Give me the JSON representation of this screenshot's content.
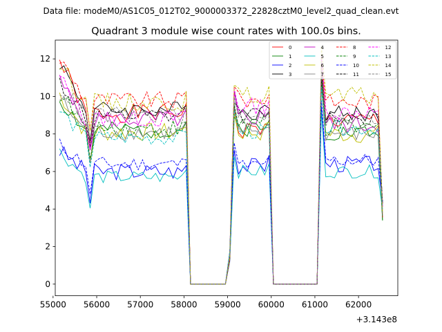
{
  "figure": {
    "suptitle": "Data file: modeM0/AS1C05_012T02_9000003372_22828cztM0_level2_quad_clean.evt"
  },
  "chart_data": {
    "type": "line",
    "title": "Quadrant 3 module wise count rates with 100.0s bins.",
    "xlabel": "",
    "ylabel": "",
    "x_offset_label": "+3.143e8",
    "xlim": [
      55050,
      62900
    ],
    "ylim": [
      -0.62,
      13.0
    ],
    "x_ticks": [
      55000,
      56000,
      57000,
      58000,
      59000,
      60000,
      61000,
      62000
    ],
    "x_tick_labels": [
      "55000",
      "56000",
      "57000",
      "58000",
      "59000",
      "60000",
      "61000",
      "62000"
    ],
    "y_ticks": [
      0,
      2,
      4,
      6,
      8,
      10,
      12
    ],
    "y_tick_labels": [
      "0",
      "2",
      "4",
      "6",
      "8",
      "10",
      "12"
    ],
    "legend": {
      "placement": "top-right",
      "columns": 4
    },
    "segments": [
      {
        "start": 55150,
        "end": 58050
      },
      {
        "start": 59050,
        "end": 59950
      },
      {
        "start": 61150,
        "end": 62550
      }
    ],
    "gaps": [
      {
        "start": 58150,
        "end": 58950
      },
      {
        "start": 60050,
        "end": 61050
      }
    ],
    "series": [
      {
        "name": "0",
        "color": "#ff0000",
        "dash": false,
        "base": [
          9.1,
          8.2,
          8.7
        ],
        "start": 12.4,
        "amp": 0.5,
        "seed": 1
      },
      {
        "name": "1",
        "color": "#008000",
        "dash": false,
        "base": [
          8.2,
          8.3,
          8.1
        ],
        "start": 10.1,
        "amp": 0.45,
        "seed": 2
      },
      {
        "name": "2",
        "color": "#0000ff",
        "dash": false,
        "base": [
          6.0,
          6.3,
          6.4
        ],
        "start": 7.3,
        "amp": 0.45,
        "seed": 3
      },
      {
        "name": "3",
        "color": "#000000",
        "dash": false,
        "base": [
          9.3,
          9.2,
          9.1
        ],
        "start": 12.3,
        "amp": 0.45,
        "seed": 4
      },
      {
        "name": "4",
        "color": "#bf00bf",
        "dash": false,
        "base": [
          8.8,
          8.9,
          8.5
        ],
        "start": 11.1,
        "amp": 0.5,
        "seed": 5
      },
      {
        "name": "5",
        "color": "#00bfbf",
        "dash": false,
        "base": [
          5.7,
          6.0,
          6.0
        ],
        "start": 7.3,
        "amp": 0.35,
        "seed": 6
      },
      {
        "name": "6",
        "color": "#bfbf00",
        "dash": false,
        "base": [
          8.1,
          8.1,
          8.0
        ],
        "start": 10.5,
        "amp": 0.5,
        "seed": 7
      },
      {
        "name": "7",
        "color": "#808080",
        "dash": false,
        "base": [
          8.1,
          8.2,
          8.0
        ],
        "start": 10.2,
        "amp": 0.45,
        "seed": 8
      },
      {
        "name": "8",
        "color": "#ff0000",
        "dash": true,
        "base": [
          9.8,
          9.8,
          9.7
        ],
        "start": 12.4,
        "amp": 0.45,
        "seed": 9
      },
      {
        "name": "9",
        "color": "#008000",
        "dash": true,
        "base": [
          8.3,
          8.6,
          8.3
        ],
        "start": 10.5,
        "amp": 0.5,
        "seed": 10
      },
      {
        "name": "10",
        "color": "#0000ff",
        "dash": true,
        "base": [
          6.4,
          6.3,
          6.6
        ],
        "start": 7.6,
        "amp": 0.4,
        "seed": 11
      },
      {
        "name": "11",
        "color": "#000000",
        "dash": true,
        "base": [
          8.9,
          9.0,
          8.9
        ],
        "start": 11.1,
        "amp": 0.45,
        "seed": 12
      },
      {
        "name": "12",
        "color": "#ff00ff",
        "dash": true,
        "base": [
          8.8,
          9.5,
          9.2
        ],
        "start": 11.4,
        "amp": 0.45,
        "seed": 13
      },
      {
        "name": "13",
        "color": "#00bfbf",
        "dash": true,
        "base": [
          7.8,
          8.1,
          8.3
        ],
        "start": 9.5,
        "amp": 0.4,
        "seed": 14
      },
      {
        "name": "14",
        "color": "#bfbf00",
        "dash": true,
        "base": [
          9.7,
          10.0,
          10.0
        ],
        "start": 12.1,
        "amp": 0.5,
        "seed": 15
      },
      {
        "name": "15",
        "color": "#808080",
        "dash": true,
        "base": [
          9.0,
          9.1,
          8.7
        ],
        "start": 10.7,
        "amp": 0.45,
        "seed": 16
      }
    ]
  }
}
